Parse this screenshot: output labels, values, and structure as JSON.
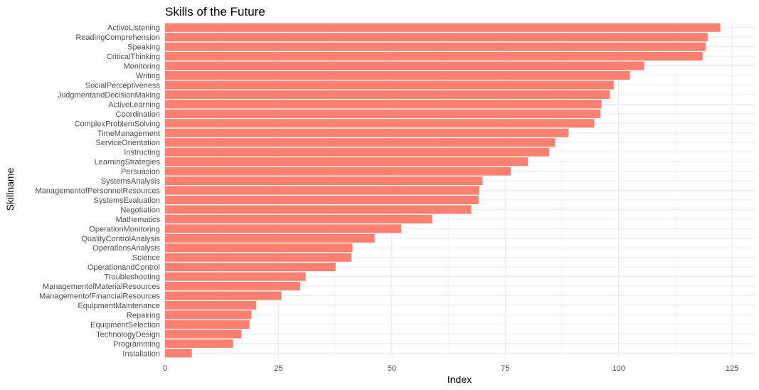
{
  "chart_data": {
    "type": "bar",
    "orientation": "horizontal",
    "title": "Skills of the Future",
    "xlabel": "Index",
    "ylabel": "Skillname",
    "xlim": [
      0,
      130
    ],
    "x_ticks": [
      0,
      25,
      50,
      75,
      100,
      125
    ],
    "grid": true,
    "bar_color": "#FA8072",
    "categories": [
      "ActiveListening",
      "ReadingComprehension",
      "Speaking",
      "CriticalThinking",
      "Monitoring",
      "Writing",
      "SocialPerceptiveness",
      "JudgmentandDecisionMaking",
      "ActiveLearning",
      "Coordination",
      "ComplexProblemSolving",
      "TimeManagement",
      "ServiceOrientation",
      "Instructing",
      "LearningStrategies",
      "Persuasion",
      "SystemsAnalysis",
      "ManagementofPersonnelResources",
      "SystemsEvaluation",
      "Negotiation",
      "Mathematics",
      "OperationMonitoring",
      "QualityControlAnalysis",
      "OperationsAnalysis",
      "Science",
      "OperationandControl",
      "Troubleshooting",
      "ManagementofMaterialResources",
      "ManagementofFinancialResources",
      "EquipmentMaintenance",
      "Repairing",
      "EquipmentSelection",
      "TechnologyDesign",
      "Programming",
      "Installation"
    ],
    "values": [
      122.4,
      119.6,
      119.2,
      118.5,
      105.6,
      102.4,
      98.9,
      98.0,
      96.2,
      96.0,
      94.6,
      88.9,
      86.0,
      84.7,
      80.0,
      76.2,
      70.0,
      69.2,
      69.1,
      67.5,
      58.9,
      52.1,
      46.2,
      41.3,
      41.1,
      37.6,
      31.0,
      29.8,
      25.6,
      20.1,
      19.0,
      18.6,
      16.8,
      15.0,
      5.9
    ]
  }
}
